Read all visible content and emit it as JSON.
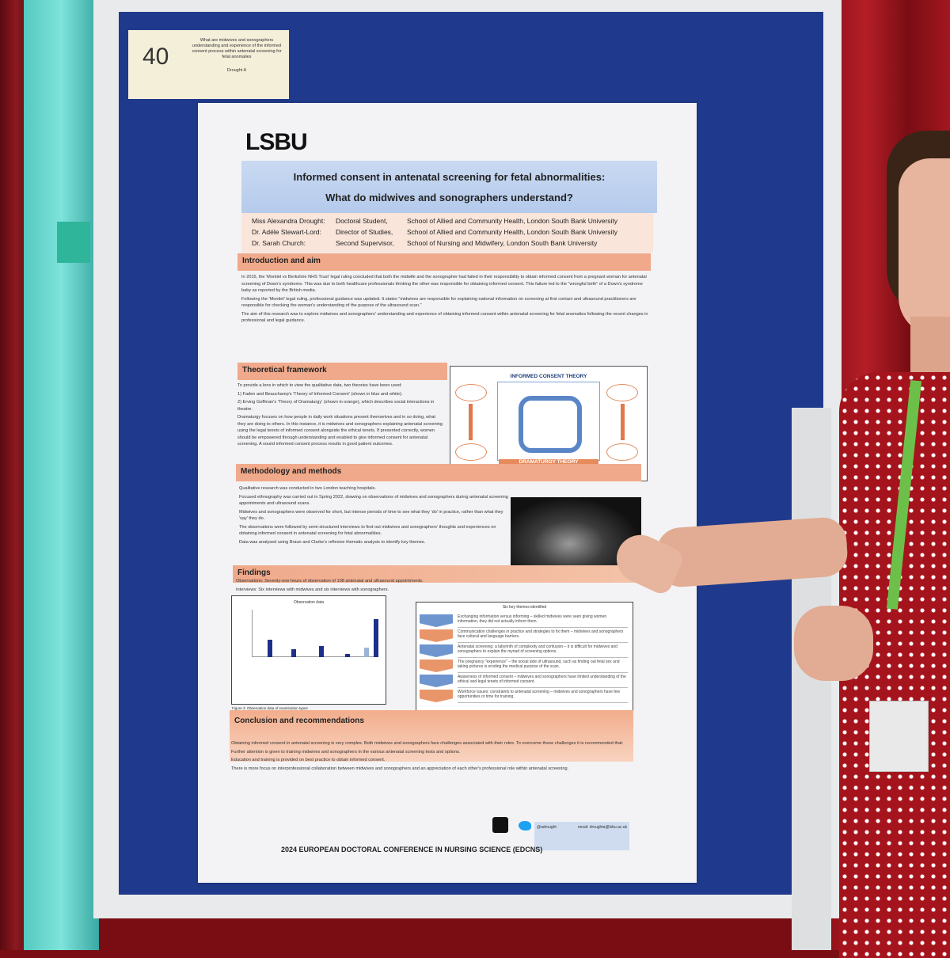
{
  "label_card": {
    "number": "40",
    "title": "What are midwives and sonographers understanding and experience of the informed consent process within antenatal screening for fetal anomalies",
    "author": "Drought A"
  },
  "poster": {
    "logo": "LSBU",
    "title_line1": "Informed consent in antenatal screening for fetal abnormalities:",
    "title_line2": "What do midwives and sonographers understand?",
    "authors": [
      {
        "name": "Miss Alexandra Drought:",
        "role": "Doctoral Student,",
        "affiliation": "School of Allied and Community Health, London South Bank University"
      },
      {
        "name": "Dr. Adéle Stewart-Lord:",
        "role": "Director of Studies,",
        "affiliation": "School of Allied and Community Health, London South Bank University"
      },
      {
        "name": "Dr. Sarah Church:",
        "role": "Second Supervisor,",
        "affiliation": "School of Nursing and Midwifery, London South Bank University"
      }
    ],
    "intro": {
      "heading": "Introduction and aim",
      "paragraphs": [
        "In 2015, the 'Montiel vs Berkshire NHS Trust' legal ruling concluded that both the midwife and the sonographer had failed in their responsibility to obtain informed consent from a pregnant woman for antenatal screening of Down's syndrome. This was due to both healthcare professionals thinking the other was responsible for obtaining informed consent. This failure led to the \"wrongful birth\" of a Down's syndrome baby as reported by the British media.",
        "Following the 'Montiel' legal ruling, professional guidance was updated. It states \"midwives are responsible for explaining national information on screening at first contact and ultrasound practitioners are responsible for checking the woman's understanding of the purpose of the ultrasound scan.\"",
        "The aim of this research was to explore midwives and sonographers' understanding and experience of obtaining informed consent within antenatal screening for fetal anomalies following the recent changes in professional and legal guidance."
      ]
    },
    "theory": {
      "heading": "Theoretical framework",
      "paragraphs": [
        "To provide a lens in which to view the qualitative data, two theories have been used:",
        "1) Faden and Beauchamp's 'Theory of Informed Consent' (shown in blue and white).",
        "2) Erving Goffman's 'Theory of Dramaturgy' (shown in orange), which describes social interactions in theatre.",
        "Dramaturgy focuses on how people in daily work situations present themselves and in so doing, what they are doing to others. In this instance, it is midwives and sonographers explaining antenatal screening using the legal tenets of informed consent alongside the ethical tenets. If presented correctly, women should be empowered through understanding and enabled to give informed consent for antenatal screening. A sound informed consent process results in good patient outcomes."
      ],
      "figure_top": "INFORMED CONSENT THEORY",
      "figure_bottom": "DRAMATURGY THEORY",
      "caption": "Figure 1. Illustration of theoretical framework"
    },
    "methods": {
      "heading": "Methodology and methods",
      "paragraphs": [
        "Qualitative research was conducted in two London teaching hospitals.",
        "Focused ethnography was carried out in Spring 2022, drawing on observations of midwives and sonographers during antenatal screening appointments and ultrasound scans.",
        "Midwives and sonographers were observed for short, but intense periods of time to see what they 'do' in practice, rather than what they 'say' they do.",
        "The observations were followed by semi-structured interviews to find out midwives and sonographers' thoughts and experiences on obtaining informed consent in antenatal screening for fetal abnormalities.",
        "Data was analysed using Braun and Clarke's reflexive thematic analysis to identify key themes."
      ],
      "caption": "Figure 2. 20-weeks fetal profile"
    },
    "findings": {
      "heading": "Findings",
      "paragraphs": [
        "Observations: Seventy-one hours of observation of 108 antenatal and ultrasound appointments.",
        "Interviews: Six interviews with midwives and six interviews with sonographers."
      ],
      "chart_title": "Observation data",
      "chart_caption": "Figure 3. Observation data of examination types",
      "themes_title": "Six key themes identified",
      "themes": [
        "Exchanging information versus informing – skilled midwives were seen giving women information, they did not actually inform them.",
        "Communication challenges in practice and strategies to fix them – midwives and sonographers face cultural and language barriers.",
        "Antenatal screening: a labyrinth of complexity and confusion – it is difficult for midwives and sonographers to explain the myriad of screening options.",
        "The pregnancy \"experience\" – the social side of ultrasound, such as finding out fetal sex and taking pictures is eroding the medical purpose of the scan.",
        "Awareness of informed consent – midwives and sonographers have limited understanding of the ethical and legal tenets of informed consent.",
        "Workforce issues: constraints to antenatal screening – midwives and sonographers have few opportunities or time for training."
      ],
      "themes_caption": "Figure 4. Themes identified from observations and interviews"
    },
    "conclusion": {
      "heading": "Conclusion and recommendations",
      "paragraphs": [
        "Obtaining informed consent in antenatal screening is very complex. Both midwives and sonographers face challenges associated with their roles. To overcome these challenges it is recommended that:",
        "Further attention is given to training midwives and sonographers in the various antenatal screening tests and options.",
        "Education and training is provided on best practice to obtain informed consent.",
        "There is more focus on interprofessional collaboration between midwives and sonographers and an appreciation of each other's professional role within antenatal screening."
      ]
    },
    "footer": {
      "handle": "@adrought",
      "email": "email: droughta@lsbu.ac.uk",
      "conference": "2024 EUROPEAN DOCTORAL CONFERENCE IN NURSING SCIENCE (EDCNS)"
    }
  }
}
